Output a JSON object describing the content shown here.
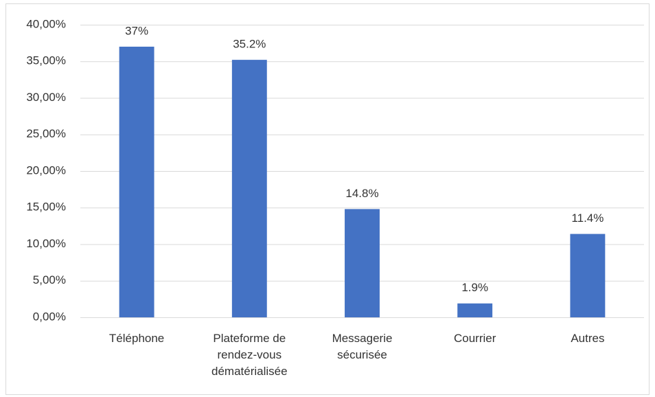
{
  "chart_data": {
    "type": "bar",
    "categories": [
      "Téléphone",
      "Plateforme de rendez-vous dématérialisée",
      "Messagerie sécurisée",
      "Courrier",
      "Autres"
    ],
    "values": [
      37,
      35.2,
      14.8,
      1.9,
      11.4
    ],
    "value_labels": [
      "37%",
      "35.2%",
      "14.8%",
      "1.9%",
      "11.4%"
    ],
    "color": "#4472c4",
    "ylim": [
      0,
      40
    ],
    "yticks": [
      {
        "value": 0,
        "label": "0,00%"
      },
      {
        "value": 5,
        "label": "5,00%"
      },
      {
        "value": 10,
        "label": "10,00%"
      },
      {
        "value": 15,
        "label": "15,00%"
      },
      {
        "value": 20,
        "label": "20,00%"
      },
      {
        "value": 25,
        "label": "25,00%"
      },
      {
        "value": 30,
        "label": "30,00%"
      },
      {
        "value": 35,
        "label": "35,00%"
      },
      {
        "value": 40,
        "label": "40,00%"
      }
    ],
    "grid": true
  }
}
